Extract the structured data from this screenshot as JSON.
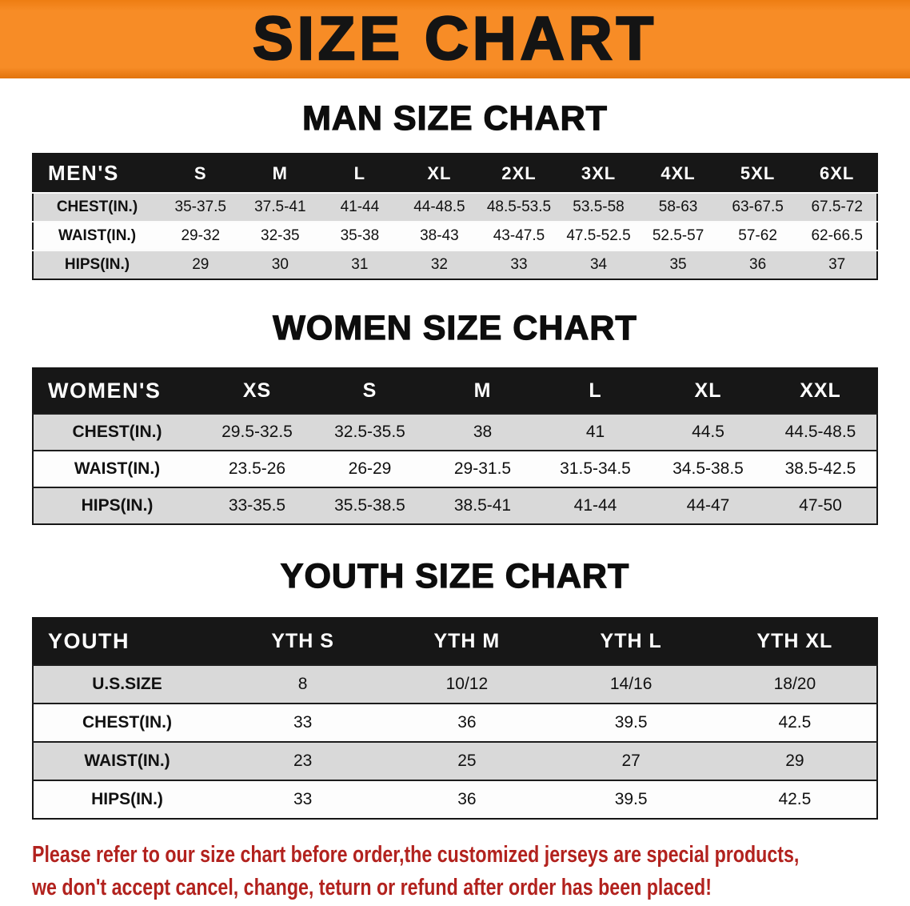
{
  "banner": {
    "title": "SIZE CHART"
  },
  "sections": [
    {
      "heading": "MAN SIZE CHART",
      "table": {
        "header": [
          "MEN'S",
          "S",
          "M",
          "L",
          "XL",
          "2XL",
          "3XL",
          "4XL",
          "5XL",
          "6XL"
        ],
        "rows": [
          [
            "CHEST(IN.)",
            "35-37.5",
            "37.5-41",
            "41-44",
            "44-48.5",
            "48.5-53.5",
            "53.5-58",
            "58-63",
            "63-67.5",
            "67.5-72"
          ],
          [
            "WAIST(IN.)",
            "29-32",
            "32-35",
            "35-38",
            "38-43",
            "43-47.5",
            "47.5-52.5",
            "52.5-57",
            "57-62",
            "62-66.5"
          ],
          [
            "HIPS(IN.)",
            "29",
            "30",
            "31",
            "32",
            "33",
            "34",
            "35",
            "36",
            "37"
          ]
        ]
      }
    },
    {
      "heading": "WOMEN SIZE CHART",
      "table": {
        "header": [
          "WOMEN'S",
          "XS",
          "S",
          "M",
          "L",
          "XL",
          "XXL"
        ],
        "rows": [
          [
            "CHEST(IN.)",
            "29.5-32.5",
            "32.5-35.5",
            "38",
            "41",
            "44.5",
            "44.5-48.5"
          ],
          [
            "WAIST(IN.)",
            "23.5-26",
            "26-29",
            "29-31.5",
            "31.5-34.5",
            "34.5-38.5",
            "38.5-42.5"
          ],
          [
            "HIPS(IN.)",
            "33-35.5",
            "35.5-38.5",
            "38.5-41",
            "41-44",
            "44-47",
            "47-50"
          ]
        ]
      }
    },
    {
      "heading": "YOUTH SIZE CHART",
      "table": {
        "header": [
          "YOUTH",
          "YTH S",
          "YTH M",
          "YTH L",
          "YTH XL"
        ],
        "rows": [
          [
            "U.S.SIZE",
            "8",
            "10/12",
            "14/16",
            "18/20"
          ],
          [
            "CHEST(IN.)",
            "33",
            "36",
            "39.5",
            "42.5"
          ],
          [
            "WAIST(IN.)",
            "23",
            "25",
            "27",
            "29"
          ],
          [
            "HIPS(IN.)",
            "33",
            "36",
            "39.5",
            "42.5"
          ]
        ]
      }
    }
  ],
  "disclaimer": {
    "lines": [
      "Please refer to our size chart before order,the customized jerseys are special products,",
      "we don't accept cancel, change, teturn or refund after order has been placed!"
    ]
  },
  "colors": {
    "banner_orange": "#f78c26",
    "table_header_black": "#171717",
    "row_gray": "#d9d9d9",
    "disclaimer_red": "#b2221e"
  }
}
